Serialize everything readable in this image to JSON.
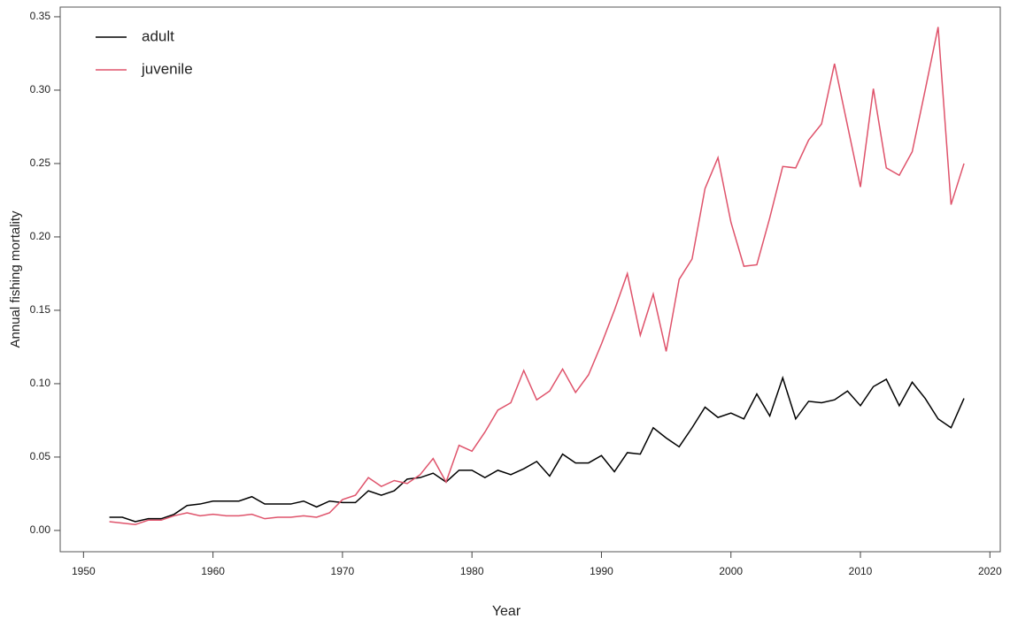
{
  "chart_data": {
    "type": "line",
    "x_label": "Year",
    "y_label": "Annual fishing mortality",
    "x": [
      1952,
      1953,
      1954,
      1955,
      1956,
      1957,
      1958,
      1959,
      1960,
      1961,
      1962,
      1963,
      1964,
      1965,
      1966,
      1967,
      1968,
      1969,
      1970,
      1971,
      1972,
      1973,
      1974,
      1975,
      1976,
      1977,
      1978,
      1979,
      1980,
      1981,
      1982,
      1983,
      1984,
      1985,
      1986,
      1987,
      1988,
      1989,
      1990,
      1991,
      1992,
      1993,
      1994,
      1995,
      1996,
      1997,
      1998,
      1999,
      2000,
      2001,
      2002,
      2003,
      2004,
      2005,
      2006,
      2007,
      2008,
      2009,
      2010,
      2011,
      2012,
      2013,
      2014,
      2015,
      2016,
      2017,
      2018
    ],
    "series": [
      {
        "name": "adult",
        "color": "#000000",
        "values": [
          0.009,
          0.009,
          0.006,
          0.008,
          0.008,
          0.011,
          0.017,
          0.018,
          0.02,
          0.02,
          0.02,
          0.023,
          0.018,
          0.018,
          0.018,
          0.02,
          0.016,
          0.02,
          0.019,
          0.019,
          0.027,
          0.024,
          0.027,
          0.035,
          0.036,
          0.039,
          0.033,
          0.041,
          0.041,
          0.036,
          0.041,
          0.038,
          0.042,
          0.047,
          0.037,
          0.052,
          0.046,
          0.046,
          0.051,
          0.04,
          0.053,
          0.052,
          0.07,
          0.063,
          0.057,
          0.07,
          0.084,
          0.077,
          0.08,
          0.076,
          0.093,
          0.078,
          0.104,
          0.076,
          0.088,
          0.087,
          0.089,
          0.095,
          0.085,
          0.098,
          0.103,
          0.085,
          0.101,
          0.09,
          0.076,
          0.07,
          0.09
        ]
      },
      {
        "name": "juvenile",
        "color": "#df536b",
        "values": [
          0.006,
          0.005,
          0.004,
          0.007,
          0.007,
          0.01,
          0.012,
          0.01,
          0.011,
          0.01,
          0.01,
          0.011,
          0.008,
          0.009,
          0.009,
          0.01,
          0.009,
          0.012,
          0.021,
          0.024,
          0.036,
          0.03,
          0.034,
          0.032,
          0.038,
          0.049,
          0.033,
          0.058,
          0.054,
          0.067,
          0.082,
          0.087,
          0.109,
          0.089,
          0.095,
          0.11,
          0.094,
          0.106,
          0.127,
          0.15,
          0.175,
          0.133,
          0.161,
          0.122,
          0.171,
          0.185,
          0.233,
          0.254,
          0.21,
          0.18,
          0.181,
          0.213,
          0.248,
          0.247,
          0.266,
          0.277,
          0.318,
          0.276,
          0.234,
          0.301,
          0.247,
          0.242,
          0.258,
          0.3,
          0.343,
          0.222,
          0.25
        ]
      }
    ],
    "xlim": [
      1948.2,
      2020.8
    ],
    "xticks": [
      1950,
      1960,
      1970,
      1980,
      1990,
      2000,
      2010,
      2020
    ],
    "ylim": [
      -0.0145,
      0.3566
    ],
    "yticks": [
      {
        "value": 0,
        "label": "0.00"
      },
      {
        "value": 0.05,
        "label": "0.05"
      },
      {
        "value": 0.1,
        "label": "0.10"
      },
      {
        "value": 0.15,
        "label": "0.15"
      },
      {
        "value": 0.2,
        "label": "0.20"
      },
      {
        "value": 0.25,
        "label": "0.25"
      },
      {
        "value": 0.3,
        "label": "0.30"
      },
      {
        "value": 0.35,
        "label": "0.35"
      }
    ],
    "legend": "top-left"
  }
}
